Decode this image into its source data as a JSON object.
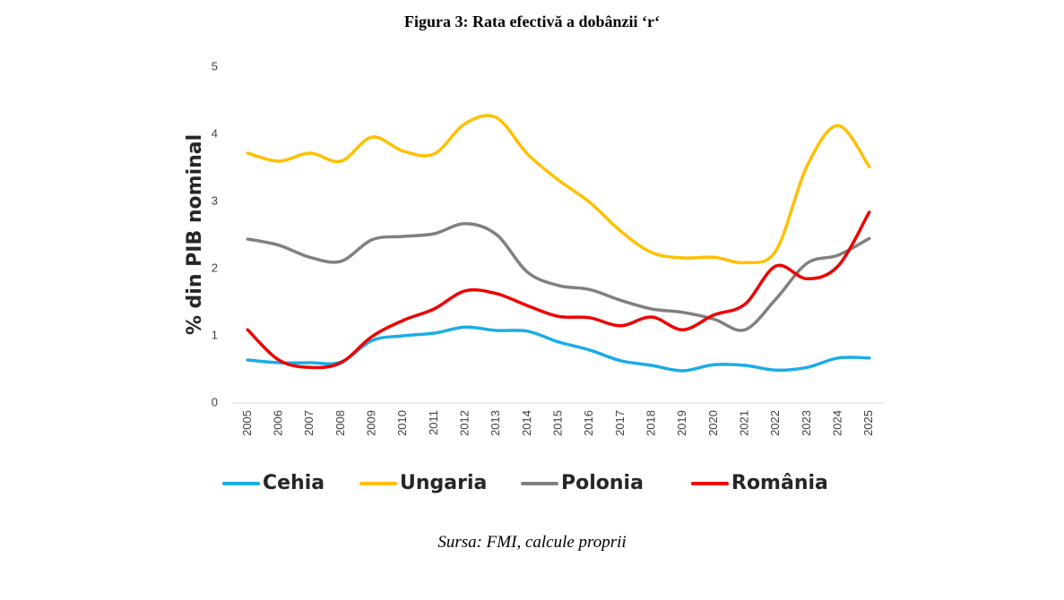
{
  "figure": {
    "title": "Figura 3: Rata efectivă a dobânzii ‘r‘",
    "source": "Sursa: FMI, calcule proprii"
  },
  "chart_data": {
    "type": "line",
    "title": "Figura 3: Rata efectivă a dobânzii ‘r‘",
    "xlabel": "",
    "ylabel": "% din PIB nominal",
    "x": [
      "2005",
      "2006",
      "2007",
      "2008",
      "2009",
      "2010",
      "2011",
      "2012",
      "2013",
      "2014",
      "2015",
      "2016",
      "2017",
      "2018",
      "2019",
      "2020",
      "2021",
      "2022",
      "2023",
      "2024",
      "2025"
    ],
    "ylim": [
      0,
      5
    ],
    "yticks": [
      0,
      1,
      2,
      3,
      4,
      5
    ],
    "grid": false,
    "legend_position": "bottom",
    "smooth": true,
    "series": [
      {
        "name": "Cehia",
        "color": "#1AADE6",
        "values": [
          0.64,
          0.6,
          0.6,
          0.61,
          0.93,
          1.0,
          1.04,
          1.13,
          1.08,
          1.07,
          0.91,
          0.79,
          0.63,
          0.56,
          0.48,
          0.57,
          0.56,
          0.49,
          0.53,
          0.67,
          0.67
        ]
      },
      {
        "name": "Ungaria",
        "color": "#FFC000",
        "values": [
          3.72,
          3.6,
          3.72,
          3.6,
          3.96,
          3.75,
          3.71,
          4.16,
          4.25,
          3.71,
          3.32,
          2.99,
          2.56,
          2.24,
          2.16,
          2.17,
          2.09,
          2.27,
          3.53,
          4.13,
          3.52
        ]
      },
      {
        "name": "Polonia",
        "color": "#808080",
        "values": [
          2.44,
          2.35,
          2.17,
          2.11,
          2.43,
          2.48,
          2.52,
          2.67,
          2.51,
          1.95,
          1.75,
          1.69,
          1.53,
          1.4,
          1.35,
          1.25,
          1.09,
          1.55,
          2.08,
          2.2,
          2.45
        ]
      },
      {
        "name": "România",
        "color": "#EE0000",
        "values": [
          1.09,
          0.64,
          0.53,
          0.6,
          0.99,
          1.23,
          1.4,
          1.67,
          1.63,
          1.45,
          1.29,
          1.27,
          1.15,
          1.28,
          1.09,
          1.31,
          1.47,
          2.04,
          1.85,
          2.04,
          2.84
        ]
      }
    ],
    "source": "Sursa: FMI, calcule proprii"
  }
}
